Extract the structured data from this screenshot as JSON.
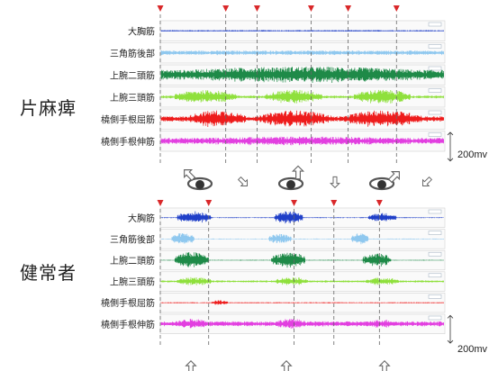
{
  "panels": [
    {
      "label": "片麻痺",
      "muscles": [
        "大胸筋",
        "三角筋後部",
        "上腕二頭筋",
        "上腕三頭筋",
        "橈側手根屈筋",
        "橈側手根伸筋"
      ],
      "scale": "200mv"
    },
    {
      "label": "健常者",
      "muscles": [
        "大胸筋",
        "三角筋後部",
        "上腕二頭筋",
        "上腕三頭筋",
        "橈側手根屈筋",
        "橈側手根伸筋"
      ],
      "scale": "200mv"
    }
  ],
  "colors": {
    "大胸筋": "#1f3fc8",
    "三角筋後部": "#8fc8ef",
    "上腕二頭筋": "#1e8a48",
    "上腕三頭筋": "#8fe03c",
    "橈側手根屈筋": "#ee1c1c",
    "橈側手根伸筋": "#e23fe0",
    "event_marker": "#d9282a",
    "dashed_line": "#666666",
    "arrow": "#8a8a8a"
  },
  "chart_data": [
    {
      "type": "line",
      "panel": "片麻痺",
      "x_range": [
        0,
        100
      ],
      "event_markers_x": [
        0,
        23,
        34,
        53,
        66,
        83
      ],
      "movement_icons": [
        "shoulder-rotation-icon",
        "arrow-down-right",
        "shoulder-rotation-icon",
        "arrow-down",
        "shoulder-rotation-icon",
        "arrow-down-left"
      ],
      "series": [
        {
          "name": "大胸筋",
          "amplitude": 0.08,
          "bursts": []
        },
        {
          "name": "三角筋後部",
          "amplitude": 0.25,
          "bursts": []
        },
        {
          "name": "上腕二頭筋",
          "amplitude": 0.55,
          "bursts": [
            [
              0,
              100,
              0.9
            ]
          ]
        },
        {
          "name": "上腕三頭筋",
          "amplitude": 0.15,
          "bursts": [
            [
              5,
              27,
              0.75
            ],
            [
              37,
              57,
              0.8
            ],
            [
              68,
              88,
              0.8
            ]
          ]
        },
        {
          "name": "橈側手根屈筋",
          "amplitude": 0.3,
          "bursts": [
            [
              10,
              30,
              0.95
            ],
            [
              35,
              60,
              0.95
            ],
            [
              65,
              92,
              0.95
            ]
          ]
        },
        {
          "name": "橈側手根伸筋",
          "amplitude": 0.35,
          "bursts": [
            [
              0,
              100,
              0.5
            ]
          ]
        }
      ]
    },
    {
      "type": "line",
      "panel": "健常者",
      "x_range": [
        0,
        100
      ],
      "event_markers_x": [
        0,
        17,
        47,
        61,
        77
      ],
      "movement_icons": [
        "arrow-up",
        "arrow-up",
        "arrow-up"
      ],
      "series": [
        {
          "name": "大胸筋",
          "amplitude": 0.05,
          "bursts": [
            [
              6,
              18,
              0.75
            ],
            [
              40,
              50,
              0.75
            ],
            [
              73,
              83,
              0.55
            ]
          ]
        },
        {
          "name": "三角筋後部",
          "amplitude": 0.05,
          "bursts": [
            [
              4,
              12,
              0.7
            ],
            [
              38,
              46,
              0.6
            ],
            [
              67,
              73,
              0.7
            ]
          ]
        },
        {
          "name": "上腕二頭筋",
          "amplitude": 0.05,
          "bursts": [
            [
              5,
              17,
              0.95
            ],
            [
              39,
              51,
              0.95
            ],
            [
              71,
              81,
              0.8
            ]
          ]
        },
        {
          "name": "上腕三頭筋",
          "amplitude": 0.12,
          "bursts": [
            [
              6,
              18,
              0.5
            ],
            [
              40,
              52,
              0.5
            ],
            [
              72,
              84,
              0.45
            ]
          ]
        },
        {
          "name": "橈側手根屈筋",
          "amplitude": 0.06,
          "bursts": [
            [
              18,
              24,
              0.3
            ]
          ]
        },
        {
          "name": "橈側手根伸筋",
          "amplitude": 0.3,
          "bursts": [
            [
              5,
              18,
              0.6
            ],
            [
              40,
              52,
              0.6
            ],
            [
              72,
              84,
              0.5
            ]
          ]
        }
      ]
    }
  ]
}
